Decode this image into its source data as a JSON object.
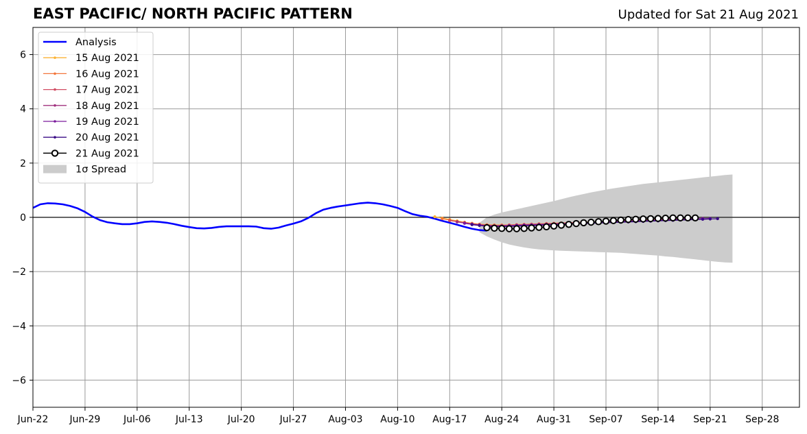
{
  "chart_data": {
    "type": "line",
    "title": "EAST PACIFIC/ NORTH PACIFIC PATTERN",
    "subtitle": "Updated for Sat 21 Aug 2021",
    "xlabel": "",
    "ylabel": "",
    "xlim": [
      "2021-06-22",
      "2021-10-03"
    ],
    "ylim": [
      -7,
      7
    ],
    "x_ticks": [
      "2021-06-22",
      "2021-06-29",
      "2021-07-06",
      "2021-07-13",
      "2021-07-20",
      "2021-07-27",
      "2021-08-03",
      "2021-08-10",
      "2021-08-17",
      "2021-08-24",
      "2021-08-31",
      "2021-09-07",
      "2021-09-14",
      "2021-09-21",
      "2021-09-28"
    ],
    "x_tick_labels": [
      "Jun-22",
      "Jun-29",
      "Jul-06",
      "Jul-13",
      "Jul-20",
      "Jul-27",
      "Aug-03",
      "Aug-10",
      "Aug-17",
      "Aug-24",
      "Aug-31",
      "Sep-07",
      "Sep-14",
      "Sep-21",
      "Sep-28"
    ],
    "y_ticks": [
      -6,
      -4,
      -2,
      0,
      2,
      4,
      6
    ],
    "y_tick_labels": [
      "−6",
      "−4",
      "−2",
      "0",
      "2",
      "4",
      "6"
    ],
    "grid": true,
    "legend_position": "top-left",
    "analysis": {
      "name": "Analysis",
      "color": "#0000ff",
      "points": [
        [
          "2021-06-22",
          0.35
        ],
        [
          "2021-06-23",
          0.48
        ],
        [
          "2021-06-24",
          0.52
        ],
        [
          "2021-06-25",
          0.51
        ],
        [
          "2021-06-26",
          0.48
        ],
        [
          "2021-06-27",
          0.42
        ],
        [
          "2021-06-28",
          0.33
        ],
        [
          "2021-06-29",
          0.2
        ],
        [
          "2021-06-30",
          0.03
        ],
        [
          "2021-07-01",
          -0.1
        ],
        [
          "2021-07-02",
          -0.18
        ],
        [
          "2021-07-03",
          -0.22
        ],
        [
          "2021-07-04",
          -0.25
        ],
        [
          "2021-07-05",
          -0.25
        ],
        [
          "2021-07-06",
          -0.22
        ],
        [
          "2021-07-07",
          -0.17
        ],
        [
          "2021-07-08",
          -0.15
        ],
        [
          "2021-07-09",
          -0.17
        ],
        [
          "2021-07-10",
          -0.2
        ],
        [
          "2021-07-11",
          -0.25
        ],
        [
          "2021-07-12",
          -0.31
        ],
        [
          "2021-07-13",
          -0.36
        ],
        [
          "2021-07-14",
          -0.4
        ],
        [
          "2021-07-15",
          -0.41
        ],
        [
          "2021-07-16",
          -0.39
        ],
        [
          "2021-07-17",
          -0.35
        ],
        [
          "2021-07-18",
          -0.33
        ],
        [
          "2021-07-19",
          -0.33
        ],
        [
          "2021-07-20",
          -0.33
        ],
        [
          "2021-07-21",
          -0.33
        ],
        [
          "2021-07-22",
          -0.34
        ],
        [
          "2021-07-23",
          -0.4
        ],
        [
          "2021-07-24",
          -0.42
        ],
        [
          "2021-07-25",
          -0.38
        ],
        [
          "2021-07-26",
          -0.3
        ],
        [
          "2021-07-27",
          -0.23
        ],
        [
          "2021-07-28",
          -0.15
        ],
        [
          "2021-07-29",
          -0.02
        ],
        [
          "2021-07-30",
          0.15
        ],
        [
          "2021-07-31",
          0.28
        ],
        [
          "2021-08-01",
          0.35
        ],
        [
          "2021-08-02",
          0.4
        ],
        [
          "2021-08-03",
          0.44
        ],
        [
          "2021-08-04",
          0.48
        ],
        [
          "2021-08-05",
          0.52
        ],
        [
          "2021-08-06",
          0.54
        ],
        [
          "2021-08-07",
          0.52
        ],
        [
          "2021-08-08",
          0.48
        ],
        [
          "2021-08-09",
          0.42
        ],
        [
          "2021-08-10",
          0.35
        ],
        [
          "2021-08-11",
          0.23
        ],
        [
          "2021-08-12",
          0.12
        ],
        [
          "2021-08-13",
          0.06
        ],
        [
          "2021-08-14",
          0.02
        ],
        [
          "2021-08-15",
          -0.05
        ],
        [
          "2021-08-16",
          -0.13
        ],
        [
          "2021-08-17",
          -0.2
        ],
        [
          "2021-08-18",
          -0.27
        ],
        [
          "2021-08-19",
          -0.35
        ],
        [
          "2021-08-20",
          -0.42
        ],
        [
          "2021-08-21",
          -0.47
        ],
        [
          "2021-08-22",
          -0.49
        ]
      ]
    },
    "forecasts": [
      {
        "name": "15 Aug 2021",
        "color": "#fbb335",
        "start": "2021-08-15",
        "values": [
          0.02,
          -0.03,
          -0.08,
          -0.13,
          -0.18,
          -0.22,
          -0.25,
          -0.27,
          -0.28,
          -0.28,
          -0.28,
          -0.27,
          -0.26,
          -0.25,
          -0.24,
          -0.23,
          -0.22,
          -0.21,
          -0.2,
          -0.19,
          -0.18,
          -0.17,
          -0.16,
          -0.15,
          -0.14,
          -0.13,
          -0.12,
          -0.11,
          -0.1,
          -0.09,
          -0.08,
          -0.07,
          -0.06,
          -0.05
        ]
      },
      {
        "name": "16 Aug 2021",
        "color": "#f3763b",
        "start": "2021-08-16",
        "values": [
          -0.05,
          -0.1,
          -0.15,
          -0.19,
          -0.23,
          -0.26,
          -0.28,
          -0.29,
          -0.29,
          -0.28,
          -0.27,
          -0.26,
          -0.25,
          -0.24,
          -0.23,
          -0.22,
          -0.21,
          -0.2,
          -0.19,
          -0.18,
          -0.17,
          -0.16,
          -0.15,
          -0.14,
          -0.13,
          -0.12,
          -0.11,
          -0.1,
          -0.09,
          -0.08,
          -0.07,
          -0.06,
          -0.05,
          -0.04
        ]
      },
      {
        "name": "17 Aug 2021",
        "color": "#d14b62",
        "start": "2021-08-17",
        "values": [
          -0.12,
          -0.16,
          -0.2,
          -0.24,
          -0.27,
          -0.29,
          -0.3,
          -0.3,
          -0.29,
          -0.28,
          -0.27,
          -0.26,
          -0.25,
          -0.24,
          -0.23,
          -0.22,
          -0.21,
          -0.2,
          -0.19,
          -0.18,
          -0.17,
          -0.16,
          -0.15,
          -0.14,
          -0.13,
          -0.12,
          -0.11,
          -0.1,
          -0.09,
          -0.08,
          -0.07,
          -0.06,
          -0.05,
          -0.04
        ]
      },
      {
        "name": "18 Aug 2021",
        "color": "#a0307e",
        "start": "2021-08-18",
        "values": [
          -0.17,
          -0.21,
          -0.25,
          -0.28,
          -0.3,
          -0.31,
          -0.31,
          -0.3,
          -0.29,
          -0.28,
          -0.27,
          -0.26,
          -0.25,
          -0.24,
          -0.23,
          -0.22,
          -0.21,
          -0.2,
          -0.19,
          -0.18,
          -0.17,
          -0.16,
          -0.15,
          -0.14,
          -0.13,
          -0.12,
          -0.11,
          -0.1,
          -0.09,
          -0.08,
          -0.07,
          -0.06,
          -0.05,
          -0.04
        ]
      },
      {
        "name": "19 Aug 2021",
        "color": "#7a1a9c",
        "start": "2021-08-19",
        "values": [
          -0.22,
          -0.26,
          -0.29,
          -0.31,
          -0.32,
          -0.32,
          -0.31,
          -0.3,
          -0.29,
          -0.28,
          -0.27,
          -0.26,
          -0.25,
          -0.24,
          -0.23,
          -0.22,
          -0.21,
          -0.2,
          -0.19,
          -0.18,
          -0.17,
          -0.16,
          -0.15,
          -0.14,
          -0.13,
          -0.12,
          -0.11,
          -0.1,
          -0.09,
          -0.08,
          -0.07,
          -0.06,
          -0.05,
          -0.04
        ]
      },
      {
        "name": "20 Aug 2021",
        "color": "#3a0b86",
        "start": "2021-08-20",
        "values": [
          -0.27,
          -0.3,
          -0.33,
          -0.34,
          -0.34,
          -0.33,
          -0.32,
          -0.31,
          -0.3,
          -0.29,
          -0.28,
          -0.27,
          -0.26,
          -0.25,
          -0.24,
          -0.23,
          -0.22,
          -0.21,
          -0.2,
          -0.19,
          -0.18,
          -0.17,
          -0.16,
          -0.15,
          -0.14,
          -0.13,
          -0.12,
          -0.11,
          -0.1,
          -0.09,
          -0.08,
          -0.07,
          -0.06,
          -0.05
        ]
      }
    ],
    "current_forecast": {
      "name": "21 Aug 2021",
      "color": "#000000",
      "marker_fill": "#ffffff",
      "start": "2021-08-22",
      "values": [
        -0.38,
        -0.4,
        -0.41,
        -0.42,
        -0.42,
        -0.41,
        -0.39,
        -0.37,
        -0.35,
        -0.32,
        -0.29,
        -0.26,
        -0.23,
        -0.2,
        -0.18,
        -0.16,
        -0.14,
        -0.12,
        -0.1,
        -0.08,
        -0.07,
        -0.06,
        -0.05,
        -0.04,
        -0.03,
        -0.02,
        -0.02,
        -0.02,
        -0.02
      ]
    },
    "spread": {
      "name": "1σ Spread",
      "color": "#cccccc",
      "start": "2021-08-21",
      "upper": [
        -0.2,
        0.0,
        0.1,
        0.18,
        0.24,
        0.3,
        0.36,
        0.42,
        0.48,
        0.54,
        0.6,
        0.67,
        0.74,
        0.8,
        0.86,
        0.92,
        0.97,
        1.02,
        1.07,
        1.11,
        1.15,
        1.19,
        1.23,
        1.26,
        1.29,
        1.32,
        1.35,
        1.38,
        1.41,
        1.44,
        1.47,
        1.5,
        1.53,
        1.56,
        1.58
      ],
      "lower": [
        -0.55,
        -0.7,
        -0.82,
        -0.92,
        -1.0,
        -1.06,
        -1.11,
        -1.15,
        -1.18,
        -1.2,
        -1.22,
        -1.23,
        -1.24,
        -1.25,
        -1.26,
        -1.27,
        -1.28,
        -1.29,
        -1.3,
        -1.31,
        -1.33,
        -1.35,
        -1.37,
        -1.39,
        -1.41,
        -1.44,
        -1.46,
        -1.49,
        -1.52,
        -1.55,
        -1.58,
        -1.61,
        -1.64,
        -1.66,
        -1.67
      ]
    }
  }
}
